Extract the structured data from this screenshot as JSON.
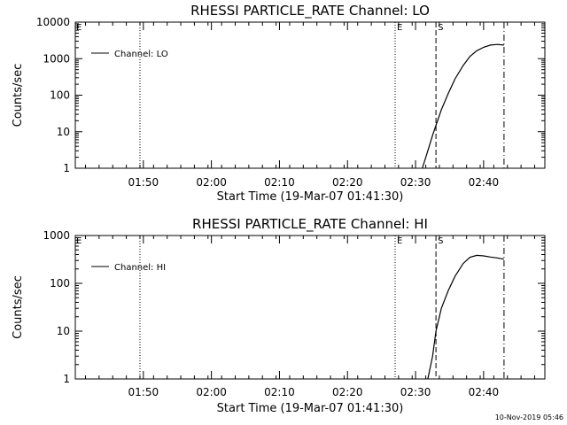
{
  "footer": {
    "timestamp": "10-Nov-2019 05:46"
  },
  "chart_data": [
    {
      "type": "line",
      "title": "RHESSI PARTICLE_RATE Channel: LO",
      "xlabel": "Start Time (19-Mar-07 01:41:30)",
      "ylabel": "Counts/sec",
      "yscale": "log",
      "ylim": [
        1,
        10000
      ],
      "xlim_minutes": [
        -1.5,
        67.5
      ],
      "yticks": [
        {
          "value": 1,
          "label": "1"
        },
        {
          "value": 10,
          "label": "10"
        },
        {
          "value": 100,
          "label": "100"
        },
        {
          "value": 1000,
          "label": "1000"
        },
        {
          "value": 10000,
          "label": "10000"
        }
      ],
      "xticks": [
        {
          "time": "01:50",
          "label": "01:50"
        },
        {
          "time": "02:00",
          "label": "02:00"
        },
        {
          "time": "02:10",
          "label": "02:10"
        },
        {
          "time": "02:20",
          "label": "02:20"
        },
        {
          "time": "02:30",
          "label": "02:30"
        },
        {
          "time": "02:40",
          "label": "02:40"
        }
      ],
      "legend": {
        "placement": "top-left",
        "entries": [
          "Channel: LO"
        ]
      },
      "markers": [
        {
          "time": "01:49:30",
          "style": "dotted",
          "label": ""
        },
        {
          "time": "02:27:00",
          "style": "dotted",
          "label": "E"
        },
        {
          "time": "02:33:00",
          "style": "dashed",
          "label": "S"
        },
        {
          "time": "02:43:00",
          "style": "dashdot",
          "label": ""
        }
      ],
      "edge_marker": "E",
      "series": [
        {
          "name": "Channel: LO",
          "points": [
            {
              "time": "02:31:00",
              "value": 1
            },
            {
              "time": "02:31:48",
              "value": 3
            },
            {
              "time": "02:32:30",
              "value": 8
            },
            {
              "time": "02:33:00",
              "value": 15
            },
            {
              "time": "02:33:48",
              "value": 40
            },
            {
              "time": "02:34:48",
              "value": 110
            },
            {
              "time": "02:35:48",
              "value": 280
            },
            {
              "time": "02:37:00",
              "value": 650
            },
            {
              "time": "02:38:00",
              "value": 1150
            },
            {
              "time": "02:39:00",
              "value": 1650
            },
            {
              "time": "02:40:00",
              "value": 2050
            },
            {
              "time": "02:41:00",
              "value": 2350
            },
            {
              "time": "02:42:00",
              "value": 2450
            },
            {
              "time": "02:43:00",
              "value": 2350
            }
          ]
        }
      ]
    },
    {
      "type": "line",
      "title": "RHESSI PARTICLE_RATE Channel: HI",
      "xlabel": "Start Time (19-Mar-07 01:41:30)",
      "ylabel": "Counts/sec",
      "yscale": "log",
      "ylim": [
        1,
        1000
      ],
      "xlim_minutes": [
        -1.5,
        67.5
      ],
      "yticks": [
        {
          "value": 1,
          "label": "1"
        },
        {
          "value": 10,
          "label": "10"
        },
        {
          "value": 100,
          "label": "100"
        },
        {
          "value": 1000,
          "label": "1000"
        }
      ],
      "xticks": [
        {
          "time": "01:50",
          "label": "01:50"
        },
        {
          "time": "02:00",
          "label": "02:00"
        },
        {
          "time": "02:10",
          "label": "02:10"
        },
        {
          "time": "02:20",
          "label": "02:20"
        },
        {
          "time": "02:30",
          "label": "02:30"
        },
        {
          "time": "02:40",
          "label": "02:40"
        }
      ],
      "legend": {
        "placement": "top-left",
        "entries": [
          "Channel: HI"
        ]
      },
      "markers": [
        {
          "time": "01:49:30",
          "style": "dotted",
          "label": ""
        },
        {
          "time": "02:27:00",
          "style": "dotted",
          "label": "E"
        },
        {
          "time": "02:33:00",
          "style": "dashed",
          "label": "S"
        },
        {
          "time": "02:43:00",
          "style": "dashdot",
          "label": ""
        }
      ],
      "edge_marker": "E",
      "series": [
        {
          "name": "Channel: HI",
          "points": [
            {
              "time": "02:31:48",
              "value": 1
            },
            {
              "time": "02:32:30",
              "value": 3
            },
            {
              "time": "02:33:00",
              "value": 10
            },
            {
              "time": "02:33:48",
              "value": 30
            },
            {
              "time": "02:34:48",
              "value": 70
            },
            {
              "time": "02:35:48",
              "value": 140
            },
            {
              "time": "02:37:00",
              "value": 260
            },
            {
              "time": "02:38:00",
              "value": 350
            },
            {
              "time": "02:39:00",
              "value": 385
            },
            {
              "time": "02:40:00",
              "value": 375
            },
            {
              "time": "02:41:00",
              "value": 355
            },
            {
              "time": "02:42:00",
              "value": 340
            },
            {
              "time": "02:43:00",
              "value": 320
            }
          ]
        }
      ]
    }
  ]
}
